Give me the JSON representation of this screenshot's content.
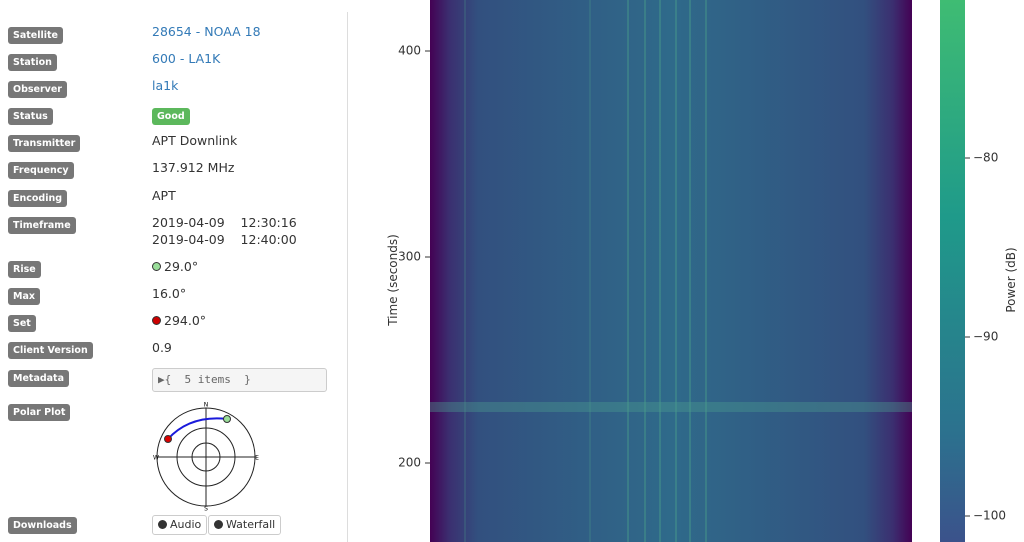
{
  "details": {
    "rows": [
      {
        "label": "Satellite",
        "value": "28654 - NOAA 18"
      },
      {
        "label": "Station",
        "value": "600 - LA1K"
      },
      {
        "label": "Observer",
        "value": "la1k"
      },
      {
        "label": "Status",
        "value": "Good"
      },
      {
        "label": "Transmitter",
        "value": "APT Downlink"
      },
      {
        "label": "Frequency",
        "value": "137.912 MHz"
      },
      {
        "label": "Encoding",
        "value": "APT"
      },
      {
        "label": "Timeframe",
        "value": [
          "2019-04-09    12:30:16",
          "2019-04-09    12:40:00"
        ]
      },
      {
        "label": "Rise",
        "value": "29.0°"
      },
      {
        "label": "Max",
        "value": "16.0°"
      },
      {
        "label": "Set",
        "value": "294.0°"
      },
      {
        "label": "Client Version",
        "value": "0.9"
      },
      {
        "label": "Metadata",
        "value": "▶{  5 items  }"
      },
      {
        "label": "Polar Plot",
        "compass": [
          "N",
          "E",
          "S",
          "W"
        ]
      },
      {
        "label": "Downloads",
        "value": [
          "Audio",
          "Waterfall"
        ]
      }
    ]
  },
  "waterfall": {
    "y_label": "Time (seconds)",
    "y_ticks": [
      "400",
      "300",
      "200"
    ],
    "colorbar_label": "Power (dB)",
    "colorbar_ticks": [
      "−80",
      "−90",
      "−100"
    ]
  }
}
